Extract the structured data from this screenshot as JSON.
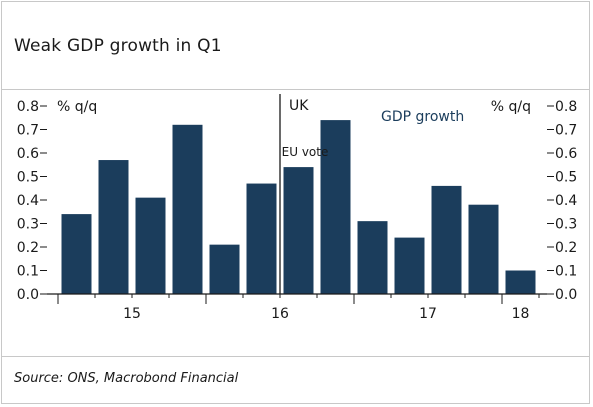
{
  "title": "Weak GDP growth in Q1",
  "source": "Source: ONS, Macrobond Financial",
  "chart_data": {
    "type": "bar",
    "series": [
      {
        "name": "GDP growth",
        "color": "#1b3d5c",
        "values": [
          0.34,
          0.57,
          0.41,
          0.72,
          0.21,
          0.47,
          0.54,
          0.74,
          0.31,
          0.24,
          0.46,
          0.38,
          0.1
        ]
      }
    ],
    "quarters": [
      "2015Q1",
      "2015Q2",
      "2015Q3",
      "2015Q4",
      "2016Q1",
      "2016Q2",
      "2016Q3",
      "2016Q4",
      "2017Q1",
      "2017Q2",
      "2017Q3",
      "2017Q4",
      "2018Q1"
    ],
    "x_tick_labels": [
      "15",
      "16",
      "17",
      "18"
    ],
    "ylim": [
      0,
      0.8
    ],
    "y_ticks": [
      "0.0",
      "0.1",
      "0.2",
      "0.3",
      "0.4",
      "0.5",
      "0.6",
      "0.7",
      "0.8"
    ],
    "ylabel_left": "% q/q",
    "ylabel_right": "% q/q",
    "legend_label": "GDP growth",
    "annotation": {
      "label_top": "UK",
      "label_bottom": "EU vote",
      "after_quarter": "2016Q2"
    },
    "grid": false
  }
}
